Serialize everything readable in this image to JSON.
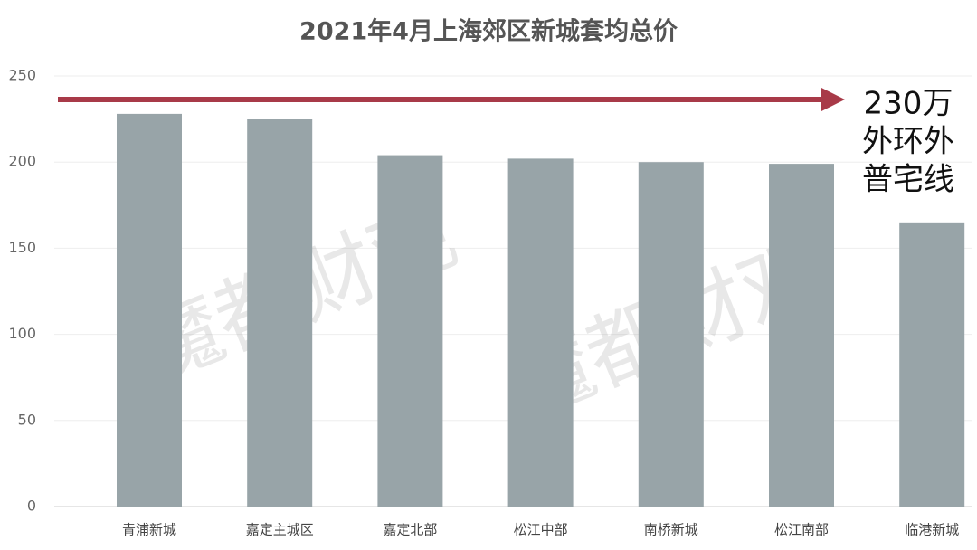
{
  "chart_data": {
    "type": "bar",
    "title": "2021年4月上海郊区新城套均总价",
    "categories": [
      "青浦新城",
      "嘉定主城区",
      "嘉定北部",
      "松江中部",
      "南桥新城",
      "松江南部",
      "临港新城"
    ],
    "values": [
      228,
      225,
      204,
      202,
      200,
      199,
      165
    ],
    "color": "#98a4a8",
    "ylim": [
      0,
      250
    ],
    "yticks": [
      0,
      50,
      100,
      150,
      200,
      250
    ],
    "grid": true,
    "annotation": [
      "230万",
      "外环外",
      "普宅线"
    ],
    "annotation_color": "#a83a48",
    "watermark": "魔都财观"
  }
}
